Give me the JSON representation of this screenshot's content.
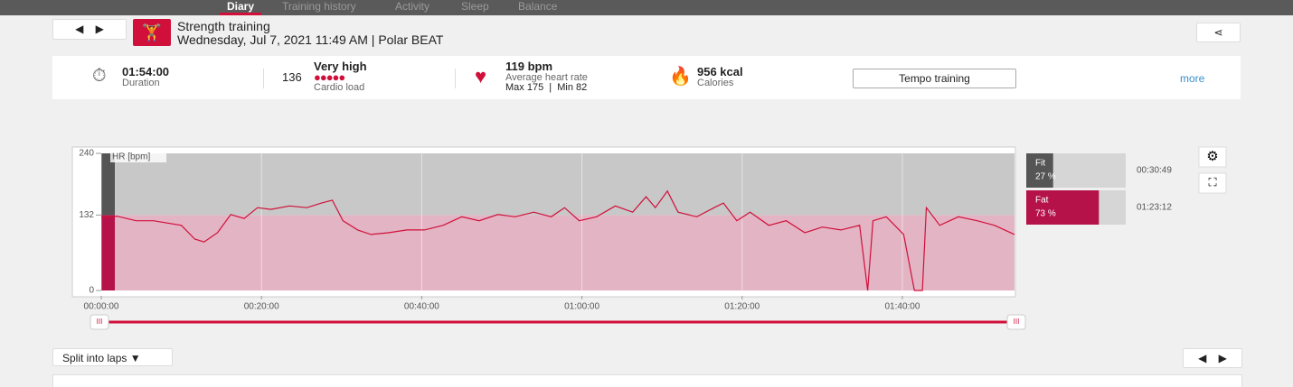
{
  "nav": {
    "tabs": [
      "Diary",
      "Training history",
      "Activity",
      "Sleep",
      "Balance"
    ]
  },
  "header": {
    "title": "Strength training",
    "subtitle": "Wednesday, Jul 7, 2021 11:49 AM | Polar BEAT"
  },
  "summary": {
    "duration": {
      "value": "01:54:00",
      "label": "Duration"
    },
    "cardio_load": {
      "value": "136",
      "level": "Very high",
      "label": "Cardio load"
    },
    "heart_rate": {
      "value": "119 bpm",
      "label": "Average heart rate",
      "range": "Max 175  |  Min 82"
    },
    "calories": {
      "value": "956 kcal",
      "label": "Calories"
    },
    "sport_profile": "Tempo training",
    "more": "more"
  },
  "chart_data": {
    "type": "line",
    "y_label": "HR [bpm]",
    "color": "#d0103a",
    "x": [
      0,
      120,
      260,
      390,
      600,
      700,
      770,
      870,
      970,
      1070,
      1170,
      1270,
      1410,
      1540,
      1650,
      1730,
      1810,
      1920,
      2020,
      2150,
      2290,
      2420,
      2560,
      2700,
      2830,
      2970,
      3100,
      3240,
      3370,
      3470,
      3580,
      3710,
      3850,
      3980,
      4080,
      4150,
      4240,
      4320,
      4460,
      4590,
      4660,
      4760,
      4860,
      5000,
      5130,
      5270,
      5400,
      5540,
      5680,
      5740,
      5780,
      5880,
      6010,
      6090,
      6150,
      6180,
      6280,
      6420,
      6560,
      6690,
      6840
    ],
    "values": [
      128,
      130,
      122,
      122,
      114,
      90,
      85,
      101,
      133,
      126,
      145,
      142,
      148,
      145,
      153,
      158,
      122,
      106,
      98,
      101,
      106,
      106,
      114,
      129,
      122,
      133,
      129,
      137,
      129,
      145,
      122,
      129,
      148,
      137,
      164,
      145,
      174,
      137,
      129,
      145,
      153,
      122,
      137,
      114,
      122,
      101,
      111,
      106,
      114,
      0,
      122,
      129,
      98,
      0,
      0,
      145,
      114,
      129,
      122,
      114,
      98
    ],
    "xlim": [
      0,
      6840
    ],
    "ylim": [
      0,
      240
    ],
    "yticks": [
      0,
      132,
      240
    ],
    "xticks": [
      {
        "value": 0,
        "label": "00:00:00"
      },
      {
        "value": 1200,
        "label": "00:20:00"
      },
      {
        "value": 2400,
        "label": "00:40:00"
      },
      {
        "value": 3600,
        "label": "01:00:00"
      },
      {
        "value": 4800,
        "label": "01:20:00"
      },
      {
        "value": 6000,
        "label": "01:40:00"
      }
    ],
    "grid": true
  },
  "zones": [
    {
      "name": "Fit",
      "percent": 27,
      "percent_label": "27 %",
      "time": "00:30:49",
      "color": "#555555"
    },
    {
      "name": "Fat",
      "percent": 73,
      "percent_label": "73 %",
      "time": "01:23:12",
      "color": "#b5124a"
    }
  ],
  "laps": {
    "button": "Split into laps"
  }
}
